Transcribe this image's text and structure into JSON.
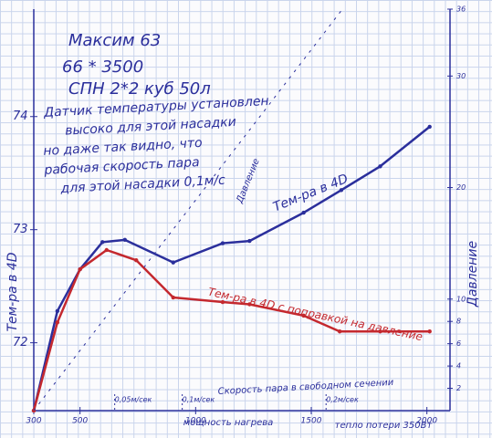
{
  "chart_data": {
    "type": "line",
    "title_lines": [
      "Максим 63",
      "66 * 3500",
      "СПН 2*2   куб 50л"
    ],
    "note_lines": [
      "Датчик температуры установлен",
      "высоко для этой насадки",
      "но даже так видно, что",
      "рабочая скорость пара",
      "для этой насадки 0,1м/с"
    ],
    "xlabel": "мощность нагрева",
    "xlabel_note": "тепло потери 350Вт",
    "ylabel": "Тем-ра в 4D",
    "y2label": "Давление",
    "speed_label": "Скорость пара в свободном сечении",
    "speed_ticks": [
      {
        "value": 650,
        "label": "0,05м/сек"
      },
      {
        "value": 942,
        "label": "0,1м/сек"
      },
      {
        "value": 1564,
        "label": "0,2м/сек"
      }
    ],
    "xlim": [
      300,
      2100
    ],
    "xticks": [
      300,
      500,
      1000,
      1500,
      2000
    ],
    "ylim": [
      71.4,
      74.95
    ],
    "yticks": [
      72,
      73,
      74
    ],
    "y2lim": [
      0,
      36
    ],
    "y2ticks": [
      2,
      4,
      6,
      8,
      10,
      20,
      30,
      36
    ],
    "series": [
      {
        "name": "Тем-ра в 4D",
        "color": "#2b2f9c",
        "x": [
          300,
          402,
          500,
          597,
          694,
          903,
          1117,
          1233,
          1467,
          1630,
          1798,
          2012
        ],
        "values": [
          71.4,
          72.28,
          72.65,
          72.89,
          72.91,
          72.71,
          72.88,
          72.9,
          73.15,
          73.35,
          73.56,
          73.91
        ]
      },
      {
        "name": "Тем-ра в 4D с поправкой на давление",
        "color": "#c4282e",
        "x": [
          300,
          402,
          500,
          615,
          743,
          903,
          1117,
          1233,
          1467,
          1623,
          1798,
          2012
        ],
        "values": [
          71.4,
          72.18,
          72.65,
          72.82,
          72.73,
          72.4,
          72.36,
          72.34,
          72.24,
          72.1,
          72.1,
          72.1
        ]
      },
      {
        "name": "Давление",
        "color": "#2b2f9c",
        "axis": "y2",
        "dashed": true,
        "x": [
          300,
          1635
        ],
        "values": [
          0,
          36
        ]
      }
    ]
  }
}
